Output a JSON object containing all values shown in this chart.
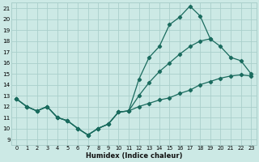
{
  "title": "",
  "xlabel": "Humidex (Indice chaleur)",
  "ylabel": "",
  "bg_color": "#cce9e5",
  "line_color": "#1a6b5e",
  "grid_color": "#aacfcb",
  "xlim": [
    -0.5,
    23.5
  ],
  "ylim": [
    8.5,
    21.5
  ],
  "xticks": [
    0,
    1,
    2,
    3,
    4,
    5,
    6,
    7,
    8,
    9,
    10,
    11,
    12,
    13,
    14,
    15,
    16,
    17,
    18,
    19,
    20,
    21,
    22,
    23
  ],
  "yticks": [
    9,
    10,
    11,
    12,
    13,
    14,
    15,
    16,
    17,
    18,
    19,
    20,
    21
  ],
  "series": [
    {
      "x": [
        0,
        1,
        2,
        3,
        4,
        5,
        6,
        7,
        8,
        9,
        10,
        11,
        12,
        13,
        14,
        15,
        16,
        17,
        18,
        19,
        20,
        21,
        22,
        23
      ],
      "y": [
        12.7,
        12.0,
        11.6,
        12.0,
        11.0,
        10.7,
        10.0,
        9.4,
        10.0,
        10.4,
        11.5,
        11.6,
        14.5,
        16.5,
        17.5,
        19.5,
        20.2,
        21.2,
        20.3,
        18.2,
        null,
        null,
        null,
        null
      ]
    },
    {
      "x": [
        0,
        1,
        2,
        3,
        4,
        5,
        6,
        7,
        8,
        9,
        10,
        11,
        12,
        13,
        14,
        15,
        16,
        17,
        18,
        19,
        20,
        21,
        22,
        23
      ],
      "y": [
        12.7,
        12.0,
        11.6,
        12.0,
        11.0,
        10.7,
        10.0,
        9.4,
        10.0,
        10.4,
        11.5,
        11.6,
        13.0,
        14.2,
        15.2,
        16.0,
        16.8,
        17.5,
        18.0,
        18.2,
        17.5,
        16.5,
        16.2,
        15.0
      ]
    },
    {
      "x": [
        0,
        1,
        2,
        3,
        4,
        5,
        6,
        7,
        8,
        9,
        10,
        11,
        12,
        13,
        14,
        15,
        16,
        17,
        18,
        19,
        20,
        21,
        22,
        23
      ],
      "y": [
        12.7,
        12.0,
        11.6,
        12.0,
        11.0,
        10.7,
        10.0,
        9.4,
        10.0,
        10.4,
        11.5,
        11.6,
        12.0,
        12.3,
        12.6,
        12.8,
        13.2,
        13.5,
        14.0,
        14.3,
        14.6,
        14.8,
        14.9,
        14.8
      ]
    }
  ]
}
